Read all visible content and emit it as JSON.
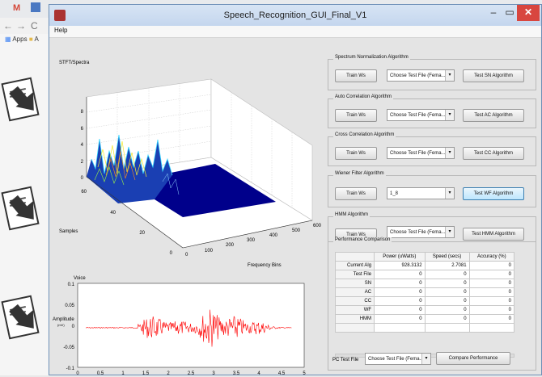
{
  "browser": {
    "tab_label": "M",
    "nav_glyphs": [
      "←",
      "→",
      "C"
    ],
    "bookmarks_label": "Apps",
    "bookmark_folder": "A"
  },
  "window": {
    "title": "Speech_Recognition_GUI_Final_V1",
    "menu": [
      "Help"
    ],
    "min_glyph": "–",
    "max_glyph": "▭",
    "close_glyph": "✕"
  },
  "stft_plot": {
    "title": "STFT/Spectra",
    "xlabel": "Frequency Bins",
    "ylabel": "Samples",
    "z_ticks": [
      "0",
      "2",
      "4",
      "6",
      "8"
    ],
    "x_ticks": [
      "0",
      "100",
      "200",
      "300",
      "400",
      "500",
      "600"
    ],
    "y_ticks": [
      "0",
      "20",
      "40",
      "60"
    ]
  },
  "voice_plot": {
    "title": "Voice",
    "ylabel": "Amplitude",
    "ylabel_sub": "(mV)",
    "y_ticks": [
      "0.1",
      "0.05",
      "0",
      "-0.05",
      "-0.1"
    ],
    "x_ticks": [
      "0",
      "0.5",
      "1",
      "1.5",
      "2",
      "2.5",
      "3",
      "3.5",
      "4",
      "4.5",
      "5"
    ]
  },
  "panels": {
    "sn": {
      "title": "Spectrum Normalization Algorithm",
      "train": "Train Ws",
      "select": "Choose Test File (Fema...",
      "test": "Test SN Algorithm"
    },
    "ac": {
      "title": "Auto Correlation Algorithm",
      "train": "Train Ws",
      "select": "Choose Test File (Fema...",
      "test": "Test AC Algorithm"
    },
    "cc": {
      "title": "Cross Correlation Algorithm",
      "train": "Train Ws",
      "select": "Choose Test File (Fema...",
      "test": "Test CC Algorithm"
    },
    "wf": {
      "title": "Wiener Filter Algorithm",
      "train": "Train Ws",
      "select": "1_8",
      "test": "Test WF Algorithm"
    },
    "hmm": {
      "title": "HMM Algorithm",
      "train": "Train Ws",
      "select": "Choose Test File (Fema...",
      "test": "Test HMM Algorithm"
    }
  },
  "performance": {
    "title": "Performance Comparison",
    "headers": [
      "",
      "Power (uWatts)",
      "Speed (secs)",
      "Accuracy (%)"
    ],
    "rows": [
      [
        "Current Alg",
        "928.3132",
        "2.7081",
        "0"
      ],
      [
        "Test File",
        "0",
        "0",
        "0"
      ],
      [
        "SN",
        "0",
        "0",
        "0"
      ],
      [
        "AC",
        "0",
        "0",
        "0"
      ],
      [
        "CC",
        "0",
        "0",
        "0"
      ],
      [
        "WF",
        "0",
        "0",
        "0"
      ],
      [
        "HMM",
        "0",
        "0",
        "0"
      ]
    ],
    "pc_label": "PC Test File",
    "pc_select": "Choose Test File (Fema...",
    "compare_button": "Compare Performance"
  },
  "colors": {
    "surface_base": "#00008b",
    "signal": "#ff0000",
    "close_button": "#d8463f"
  }
}
